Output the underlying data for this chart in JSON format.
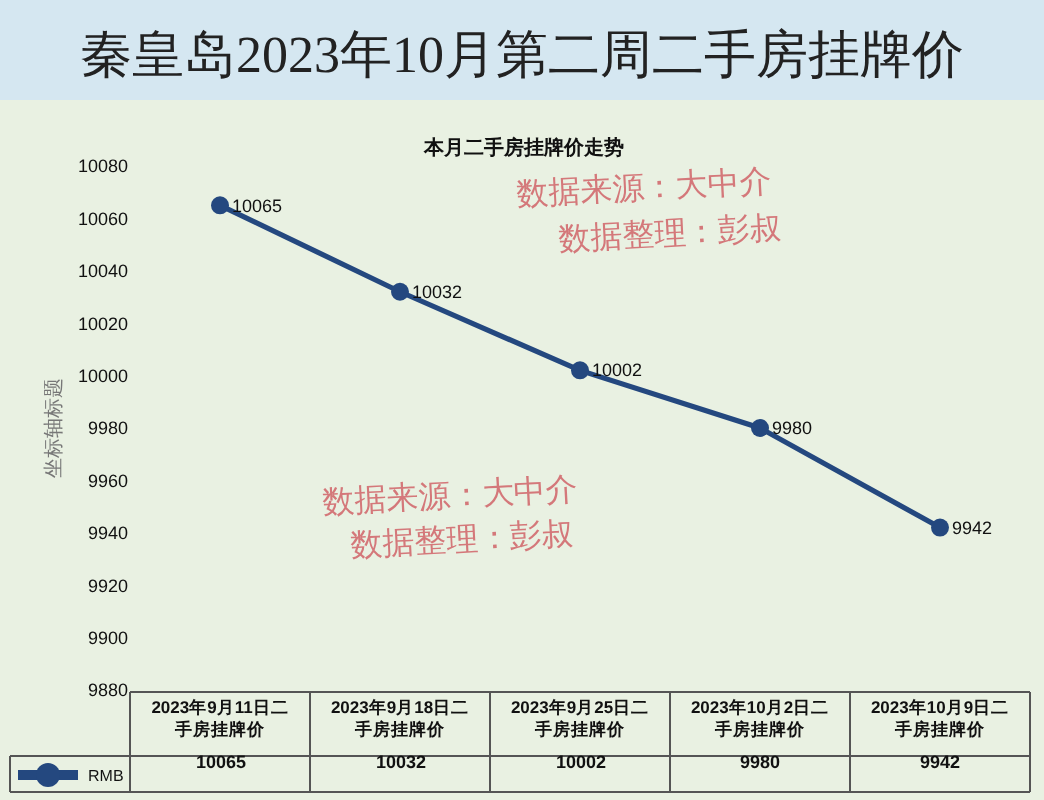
{
  "chart_data": {
    "type": "line",
    "title": "秦皇岛2023年10月第二周二手房挂牌价",
    "subtitle": "本月二手房挂牌价走势",
    "ylabel": "坐标轴标题",
    "categories": [
      "2023年9月11日二手房挂牌价",
      "2023年9月18日二手房挂牌价",
      "2023年9月25日二手房挂牌价",
      "2023年10月2日二手房挂牌价",
      "2023年10月9日二手房挂牌价"
    ],
    "series": [
      {
        "name": "RMB",
        "color": "#24487f",
        "values": [
          10065,
          10032,
          10002,
          9980,
          9942
        ],
        "value_labels": [
          "10065",
          "10032",
          "10002",
          "9980",
          "9942"
        ]
      }
    ],
    "ylim": [
      9880,
      10080
    ],
    "yticks": [
      9880,
      9900,
      9920,
      9940,
      9960,
      9980,
      10000,
      10020,
      10040,
      10060,
      10080
    ],
    "data_labels": true,
    "marker": "circle",
    "line_style": "solid",
    "grid": false,
    "legend": "bottom left",
    "annotations": [
      "数据来源：大中介",
      "数据整理：彭叔",
      "数据来源：大中介",
      "数据整理：彭叔"
    ]
  }
}
